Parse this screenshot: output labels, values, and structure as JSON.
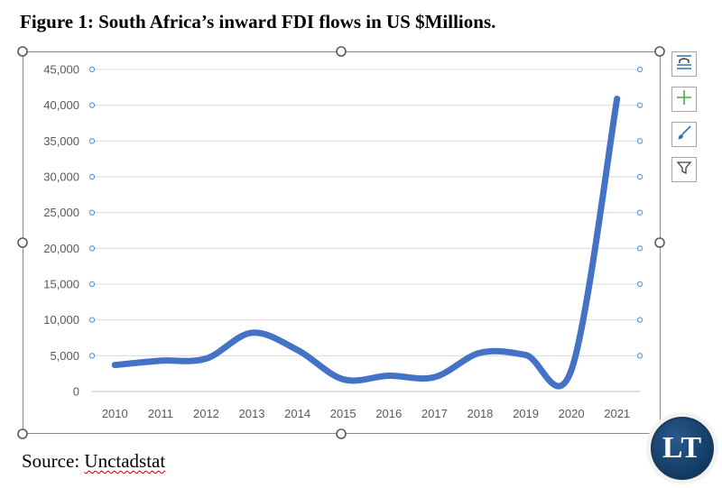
{
  "figure_title": "Figure 1: South Africa’s inward FDI flows in US $Millions.",
  "source": {
    "prefix": "Source: ",
    "name": "Unctadstat"
  },
  "logo_text": "LT",
  "side_buttons": {
    "icons": [
      "chart-elements-icon",
      "plus-icon",
      "brush-icon",
      "filter-icon"
    ]
  },
  "colors": {
    "line": "#4472c4",
    "handle_dot": "#5b9bd5",
    "grid": "#d9d9d9",
    "plus": "#4caf50"
  },
  "chart_data": {
    "type": "line",
    "title": "",
    "xlabel": "",
    "ylabel": "",
    "categories": [
      "2010",
      "2011",
      "2012",
      "2013",
      "2014",
      "2015",
      "2016",
      "2017",
      "2018",
      "2019",
      "2020",
      "2021"
    ],
    "series": [
      {
        "values": [
          3700,
          4300,
          4600,
          8200,
          5800,
          1700,
          2200,
          2000,
          5400,
          5100,
          3000,
          40900
        ]
      }
    ],
    "yticks": [
      "0",
      "5,000",
      "10,000",
      "15,000",
      "20,000",
      "25,000",
      "30,000",
      "35,000",
      "40,000",
      "45,000"
    ],
    "ylim": [
      0,
      45000
    ],
    "grid": true,
    "smooth": true,
    "legend": "none"
  }
}
